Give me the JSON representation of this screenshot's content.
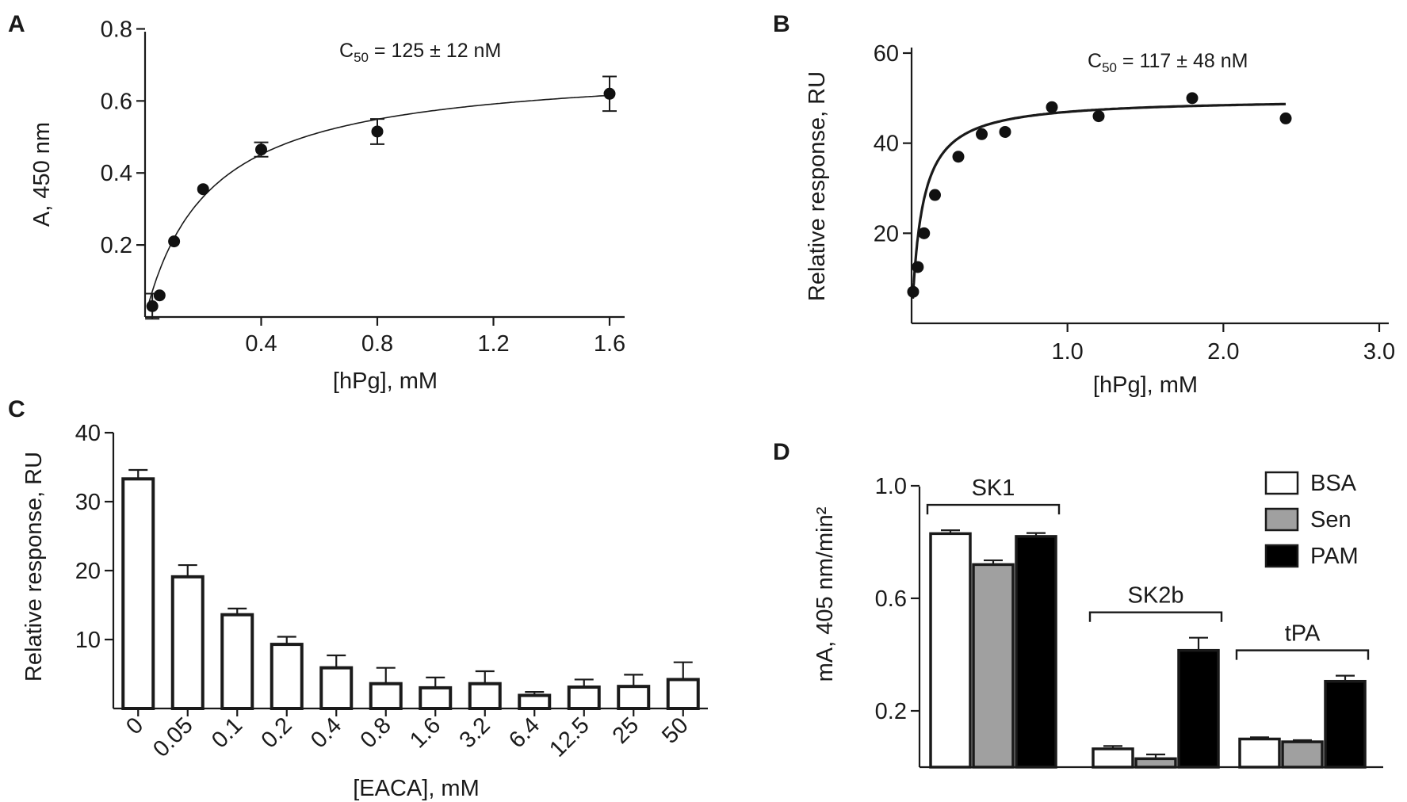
{
  "figure_panels": [
    {
      "id": "A"
    },
    {
      "id": "B"
    },
    {
      "id": "C"
    },
    {
      "id": "D"
    }
  ],
  "chart_data": [
    {
      "panel": "A",
      "type": "scatter",
      "xlabel": "[hPg], mM",
      "ylabel": "A, 450 nm",
      "xlim": [
        0,
        1.65
      ],
      "ylim": [
        0,
        0.8
      ],
      "xticks": [
        "0.4",
        "0.8",
        "1.2",
        "1.6"
      ],
      "yticks": [
        "0.2",
        "0.4",
        "0.6",
        "0.8"
      ],
      "annotation": {
        "prefix": "C",
        "subscript": "50",
        "text": " = 125 ± 12 nM"
      },
      "points": [
        {
          "x": 0.025,
          "y": 0.03,
          "err": 0.035
        },
        {
          "x": 0.05,
          "y": 0.06,
          "err": 0
        },
        {
          "x": 0.1,
          "y": 0.21,
          "err": 0
        },
        {
          "x": 0.2,
          "y": 0.355,
          "err": 0
        },
        {
          "x": 0.4,
          "y": 0.465,
          "err": 0.02
        },
        {
          "x": 0.8,
          "y": 0.515,
          "err": 0.035
        },
        {
          "x": 1.6,
          "y": 0.62,
          "err": 0.048
        }
      ],
      "fit": {
        "model": "hyperbolic",
        "bmax": 0.7,
        "kd": 0.22
      }
    },
    {
      "panel": "B",
      "type": "scatter",
      "xlabel": "[hPg], mM",
      "ylabel": "Relative response, RU",
      "xlim": [
        0,
        3.0
      ],
      "ylim": [
        0,
        60
      ],
      "xticks": [
        "1.0",
        "2.0",
        "3.0"
      ],
      "yticks": [
        "20",
        "40",
        "60"
      ],
      "annotation": {
        "prefix": "C",
        "subscript": "50",
        "text": " = 117 ± 48 nM"
      },
      "points": [
        {
          "x": 0.01,
          "y": 7
        },
        {
          "x": 0.04,
          "y": 12.5
        },
        {
          "x": 0.08,
          "y": 20
        },
        {
          "x": 0.15,
          "y": 28.5
        },
        {
          "x": 0.3,
          "y": 37
        },
        {
          "x": 0.45,
          "y": 42
        },
        {
          "x": 0.6,
          "y": 42.5
        },
        {
          "x": 0.9,
          "y": 48
        },
        {
          "x": 1.2,
          "y": 46
        },
        {
          "x": 1.8,
          "y": 50
        },
        {
          "x": 2.4,
          "y": 45.5
        }
      ],
      "fit": {
        "model": "hyperbolic",
        "bmax": 50,
        "kd": 0.065
      }
    },
    {
      "panel": "C",
      "type": "bar",
      "xlabel": "[EACA], mM",
      "ylabel": "Relative response, RU",
      "ylim": [
        0,
        40
      ],
      "yticks": [
        "10",
        "20",
        "30",
        "40"
      ],
      "categories": [
        "0",
        "0.05",
        "0.1",
        "0.2",
        "0.4",
        "0.8",
        "1.6",
        "3.2",
        "6.4",
        "12.5",
        "25",
        "50"
      ],
      "values": [
        33.3,
        19.1,
        13.6,
        9.3,
        5.9,
        3.6,
        3.0,
        3.6,
        1.9,
        3.1,
        3.2,
        4.2
      ],
      "errors": [
        1.3,
        1.7,
        0.9,
        1.1,
        1.8,
        2.3,
        1.5,
        1.8,
        0.5,
        1.1,
        1.7,
        2.5
      ]
    },
    {
      "panel": "D",
      "type": "bar",
      "ylabel": "mA, 405 nm/min²",
      "ylim": [
        0,
        1.0
      ],
      "yticks": [
        "0.2",
        "0.6",
        "1.0"
      ],
      "categories": [
        "SK1",
        "SK2b",
        "tPA"
      ],
      "series": [
        {
          "name": "BSA",
          "color": "#ffffff",
          "values": [
            0.83,
            0.065,
            0.1
          ],
          "errors": [
            0.012,
            0.01,
            0.006
          ]
        },
        {
          "name": "Sen",
          "color": "#a0a0a0",
          "values": [
            0.72,
            0.03,
            0.09
          ],
          "errors": [
            0.015,
            0.015,
            0.006
          ]
        },
        {
          "name": "PAM",
          "color": "#000000",
          "values": [
            0.82,
            0.415,
            0.305
          ],
          "errors": [
            0.012,
            0.045,
            0.02
          ]
        }
      ],
      "legend": "top-right"
    }
  ]
}
